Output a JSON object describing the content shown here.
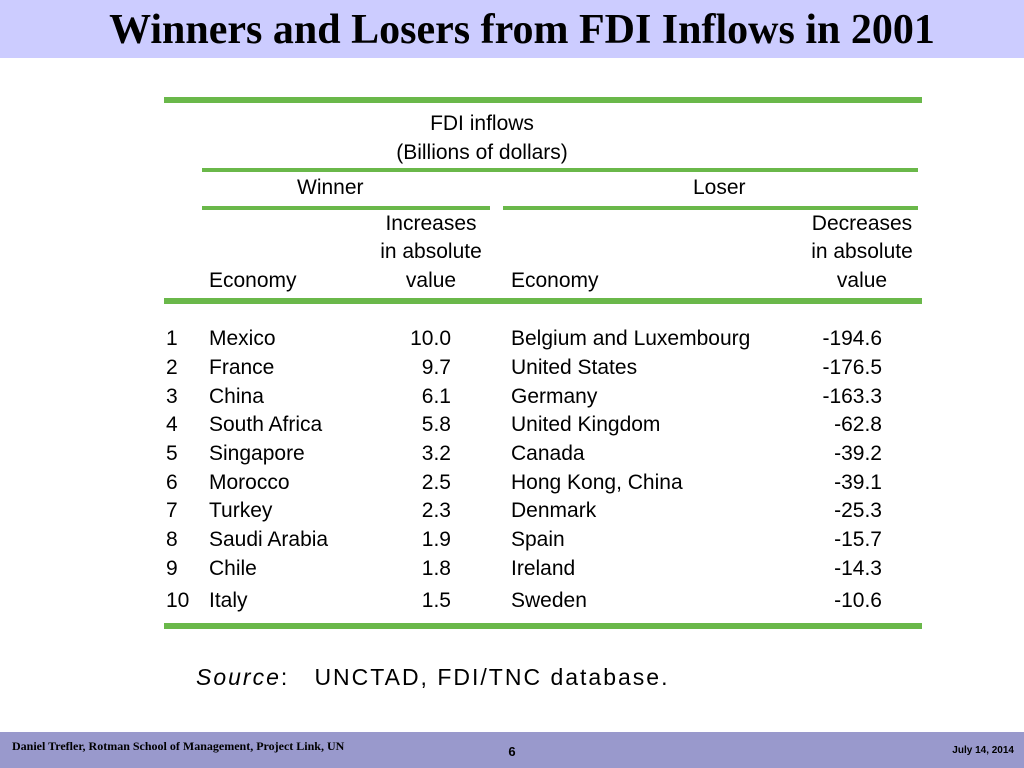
{
  "title": "Winners and Losers from FDI Inflows in 2001",
  "table": {
    "group_header_line1": "FDI inflows",
    "group_header_line2": "(Billions of dollars)",
    "winner_label": "Winner",
    "loser_label": "Loser",
    "winner_economy_header": "Economy",
    "winner_value_header": [
      "Increases",
      "in absolute",
      "value"
    ],
    "loser_economy_header": "Economy",
    "loser_value_header": [
      "Decreases",
      "in absolute",
      "value"
    ],
    "rows": [
      {
        "rank": "1",
        "winner": "Mexico",
        "winner_value": "10.0",
        "loser": "Belgium and Luxembourg",
        "loser_value": "-194.6"
      },
      {
        "rank": "2",
        "winner": "France",
        "winner_value": "9.7",
        "loser": "United States",
        "loser_value": "-176.5"
      },
      {
        "rank": "3",
        "winner": "China",
        "winner_value": "6.1",
        "loser": "Germany",
        "loser_value": "-163.3"
      },
      {
        "rank": "4",
        "winner": "South Africa",
        "winner_value": "5.8",
        "loser": "United Kingdom",
        "loser_value": "-62.8"
      },
      {
        "rank": "5",
        "winner": "Singapore",
        "winner_value": "3.2",
        "loser": "Canada",
        "loser_value": "-39.2"
      },
      {
        "rank": "6",
        "winner": "Morocco",
        "winner_value": "2.5",
        "loser": "Hong Kong, China",
        "loser_value": "-39.1"
      },
      {
        "rank": "7",
        "winner": "Turkey",
        "winner_value": "2.3",
        "loser": "Denmark",
        "loser_value": "-25.3"
      },
      {
        "rank": "8",
        "winner": "Saudi Arabia",
        "winner_value": "1.9",
        "loser": "Spain",
        "loser_value": "-15.7"
      },
      {
        "rank": "9",
        "winner": "Chile",
        "winner_value": "1.8",
        "loser": "Ireland",
        "loser_value": "-14.3"
      },
      {
        "rank": "10",
        "winner": "Italy",
        "winner_value": "1.5",
        "loser": "Sweden",
        "loser_value": "-10.6"
      }
    ]
  },
  "source": {
    "label": "Source",
    "text": "UNCTAD, FDI/TNC database."
  },
  "footer": {
    "author": "Daniel Trefler, Rotman School of Management, Project Link, UN",
    "page_number": "6",
    "date": "July 14, 2014"
  },
  "colors": {
    "title_bar": "#ccccff",
    "footer_bar": "#9999cc",
    "rule": "#6ab84a"
  }
}
